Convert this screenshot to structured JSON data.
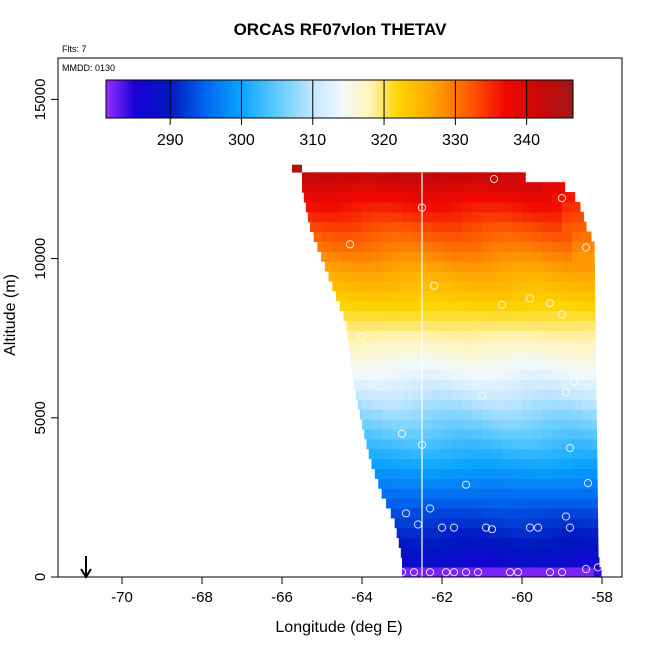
{
  "chart_data": {
    "type": "heatmap",
    "title": "ORCAS RF07vlon THETAV",
    "notes": {
      "flights": "Flts: 7",
      "date": "MMDD: 0130"
    },
    "xlabel": "Longitude (deg E)",
    "ylabel": "Altitude (m)",
    "xlim": [
      -71.6,
      -57.5
    ],
    "ylim": [
      0,
      16300
    ],
    "xticks": [
      -70,
      -68,
      -66,
      -64,
      -62,
      -60,
      -58
    ],
    "yticks": [
      0,
      5000,
      10000,
      15000
    ],
    "colorbar": {
      "range": [
        281,
        346.5
      ],
      "ticks": [
        290,
        300,
        310,
        320,
        330,
        340
      ],
      "stops": [
        {
          "v": 281,
          "c": "#9a30ff"
        },
        {
          "v": 285,
          "c": "#1a00d8"
        },
        {
          "v": 290,
          "c": "#0018c0"
        },
        {
          "v": 295,
          "c": "#0066f0"
        },
        {
          "v": 300,
          "c": "#0aa4ff"
        },
        {
          "v": 305,
          "c": "#60cbff"
        },
        {
          "v": 310,
          "c": "#c2e6ff"
        },
        {
          "v": 314,
          "c": "#f0f8ff"
        },
        {
          "v": 318,
          "c": "#fff5b8"
        },
        {
          "v": 322,
          "c": "#ffd400"
        },
        {
          "v": 327,
          "c": "#ffa200"
        },
        {
          "v": 332,
          "c": "#ff5a00"
        },
        {
          "v": 337,
          "c": "#f20800"
        },
        {
          "v": 342,
          "c": "#c80808"
        },
        {
          "v": 346.5,
          "c": "#a01818"
        }
      ]
    },
    "theta_profile": [
      {
        "z": 0,
        "v": 284
      },
      {
        "z": 600,
        "v": 288
      },
      {
        "z": 2000,
        "v": 293
      },
      {
        "z": 3500,
        "v": 300
      },
      {
        "z": 5000,
        "v": 307
      },
      {
        "z": 6500,
        "v": 314
      },
      {
        "z": 8000,
        "v": 320
      },
      {
        "z": 9500,
        "v": 326
      },
      {
        "z": 11000,
        "v": 333
      },
      {
        "z": 12000,
        "v": 338
      },
      {
        "z": 12700,
        "v": 343
      }
    ],
    "west_boundary": [
      {
        "z": 0,
        "lon": -63.0
      },
      {
        "z": 600,
        "lon": -63.0
      },
      {
        "z": 1800,
        "lon": -63.2
      },
      {
        "z": 2600,
        "lon": -63.5
      },
      {
        "z": 3700,
        "lon": -63.8
      },
      {
        "z": 4800,
        "lon": -64.0
      },
      {
        "z": 6000,
        "lon": -64.2
      },
      {
        "z": 7000,
        "lon": -64.3
      },
      {
        "z": 8000,
        "lon": -64.4
      },
      {
        "z": 9000,
        "lon": -64.7
      },
      {
        "z": 10000,
        "lon": -65.0
      },
      {
        "z": 11000,
        "lon": -65.3
      },
      {
        "z": 12200,
        "lon": -65.5
      },
      {
        "z": 12700,
        "lon": -65.5
      }
    ],
    "east_boundary": [
      {
        "z": 0,
        "lon": -58.0
      },
      {
        "z": 600,
        "lon": -58.1
      },
      {
        "z": 10500,
        "lon": -58.2
      },
      {
        "z": 11000,
        "lon": -58.4
      },
      {
        "z": 11500,
        "lon": -58.5
      },
      {
        "z": 12200,
        "lon": -58.8
      },
      {
        "z": 12500,
        "lon": -59.7
      },
      {
        "z": 12700,
        "lon": -60.5
      }
    ],
    "vertical_line_lon": -62.5,
    "observations": [
      {
        "lon": -62.5,
        "z": 11600
      },
      {
        "lon": -60.7,
        "z": 12500
      },
      {
        "lon": -59.0,
        "z": 11900
      },
      {
        "lon": -64.3,
        "z": 10450
      },
      {
        "lon": -58.4,
        "z": 10350
      },
      {
        "lon": -62.2,
        "z": 9150
      },
      {
        "lon": -60.5,
        "z": 8550
      },
      {
        "lon": -59.8,
        "z": 8750
      },
      {
        "lon": -59.3,
        "z": 8600
      },
      {
        "lon": -59.0,
        "z": 8250
      },
      {
        "lon": -64.0,
        "z": 7550
      },
      {
        "lon": -58.7,
        "z": 6150
      },
      {
        "lon": -61.0,
        "z": 5700
      },
      {
        "lon": -58.9,
        "z": 5800
      },
      {
        "lon": -63.0,
        "z": 4500
      },
      {
        "lon": -62.5,
        "z": 4150
      },
      {
        "lon": -58.8,
        "z": 4050
      },
      {
        "lon": -61.4,
        "z": 2900
      },
      {
        "lon": -58.35,
        "z": 2950
      },
      {
        "lon": -62.3,
        "z": 2150
      },
      {
        "lon": -62.9,
        "z": 2000
      },
      {
        "lon": -58.9,
        "z": 1900
      },
      {
        "lon": -62.6,
        "z": 1650
      },
      {
        "lon": -62.0,
        "z": 1550
      },
      {
        "lon": -61.7,
        "z": 1550
      },
      {
        "lon": -60.9,
        "z": 1550
      },
      {
        "lon": -60.75,
        "z": 1500
      },
      {
        "lon": -59.8,
        "z": 1550
      },
      {
        "lon": -59.6,
        "z": 1550
      },
      {
        "lon": -58.8,
        "z": 1550
      },
      {
        "lon": -63.0,
        "z": 150
      },
      {
        "lon": -62.7,
        "z": 150
      },
      {
        "lon": -62.3,
        "z": 150
      },
      {
        "lon": -61.9,
        "z": 150
      },
      {
        "lon": -61.7,
        "z": 150
      },
      {
        "lon": -61.4,
        "z": 150
      },
      {
        "lon": -61.1,
        "z": 150
      },
      {
        "lon": -60.3,
        "z": 150
      },
      {
        "lon": -60.1,
        "z": 150
      },
      {
        "lon": -59.3,
        "z": 150
      },
      {
        "lon": -59.0,
        "z": 150
      },
      {
        "lon": -58.4,
        "z": 250
      },
      {
        "lon": -58.1,
        "z": 300
      }
    ],
    "arrow_lon": -70.9
  }
}
